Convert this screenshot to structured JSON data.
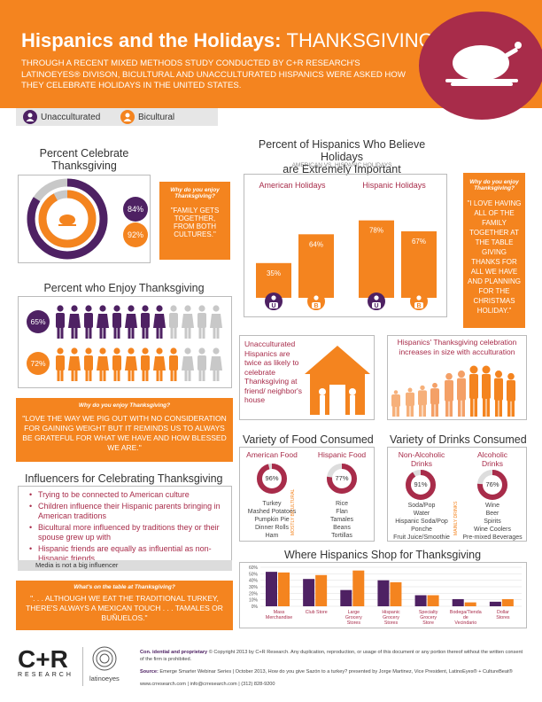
{
  "header": {
    "title_bold": "Hispanics and the Holidays:",
    "title_thin": "THANKSGIVING",
    "description": "Through a recent mixed methods study conducted by C+R Research's LatinoEyes® divison, bicultural and unacculturated Hispanics were asked how they celebrate holidays in the United States."
  },
  "legend": {
    "unacculturated": "Unacculturated",
    "bicultural": "Bicultural"
  },
  "colors": {
    "purple": "#4e2163",
    "orange": "#f4841f",
    "maroon": "#a82c4a",
    "gray": "#c8c8c8"
  },
  "celebrate": {
    "title_line1": "Percent Celebrate",
    "title_line2": "Thanksgiving",
    "unacculturated": "84%",
    "bicultural": "92%",
    "quote_q": "Why do you enjoy Thanksgiving?",
    "quote": "\"Family gets together, from both cultures.\""
  },
  "enjoy": {
    "title": "Percent who Enjoy Thanksgiving",
    "unacculturated": "65%",
    "bicultural": "72%"
  },
  "quote_wide": {
    "q": "Why do you enjoy Thanksgiving?",
    "text": "\"Love the way we pig out with no consideration for gaining weight but it reminds us to always be grateful for what we have and how blessed we are.\""
  },
  "important": {
    "title_line1": "Percent of Hispanics Who Believe Holidays",
    "title_line2": "are Extremely Important",
    "subtitle": "American vs. Hispanic Holidays",
    "american_label": "American Holidays",
    "hispanic_label": "Hispanic Holidays",
    "u_mark": "U",
    "b_mark": "B"
  },
  "chart_data": [
    {
      "type": "bar",
      "title": "Percent of Hispanics Who Believe Holidays are Extremely Important",
      "categories": [
        "American Holidays",
        "Hispanic Holidays"
      ],
      "series": [
        {
          "name": "Unacculturated",
          "values": [
            35,
            78
          ]
        },
        {
          "name": "Bicultural",
          "values": [
            64,
            67
          ]
        }
      ],
      "labels": [
        "35%",
        "64%",
        "78%",
        "67%"
      ],
      "ylim": [
        0,
        100
      ]
    },
    {
      "type": "bar",
      "title": "Where Hispanics Shop for Thanksgiving",
      "categories": [
        "Mass Merchandise",
        "Club Store",
        "Large Grocery Stores",
        "Hispanic Grocery Stores",
        "Specialty Grocery Store",
        "Bodega/Tienda de Vecindario",
        "Dollar Stores"
      ],
      "series": [
        {
          "name": "Unacculturated",
          "values": [
            53,
            42,
            25,
            40,
            17,
            11,
            7
          ]
        },
        {
          "name": "Bicultural",
          "values": [
            52,
            48,
            55,
            37,
            17,
            6,
            11
          ]
        }
      ],
      "yticks": [
        "0%",
        "10%",
        "20%",
        "30%",
        "40%",
        "50%",
        "60%"
      ],
      "ylim": [
        0,
        60
      ]
    }
  ],
  "quote_right": {
    "q": "Why do you enjoy Thanksgiving?",
    "text": "\"I love having all of the family together at the table giving thanks for all we have and planning for the Christmas holiday.\""
  },
  "house": {
    "text": "Unacculturated Hispanics are twice as likely to celebrate Thanksgiving at friend/ neighbor's house"
  },
  "family": {
    "text": "Hispanics' Thanksgiving celebration increases in size with acculturation"
  },
  "food": {
    "title": "Variety of Food Consumed",
    "american": "American Food",
    "hispanic": "Hispanic Food",
    "american_pct": "96%",
    "hispanic_pct": "77%",
    "american_items": [
      "Turkey",
      "Mashed Potatoes",
      "Pumpkin Pie",
      "Dinner Rolls",
      "Ham"
    ],
    "hispanic_items": [
      "Rice",
      "Flan",
      "Tamales",
      "Beans",
      "Tortillas"
    ],
    "side": "Mostly Bicultural"
  },
  "drinks": {
    "title": "Variety of Drinks Consumed",
    "nonalc_l1": "Non-Alcoholic",
    "nonalc_l2": "Drinks",
    "alc_l1": "Alcoholic",
    "alc_l2": "Drinks",
    "nonalc_pct": "91%",
    "alc_pct": "76%",
    "nonalc_items": [
      "Soda/Pop",
      "Water",
      "Hispanic Soda/Pop",
      "Ponche",
      "Fruit Juice/Smoothie"
    ],
    "alc_items": [
      "Wine",
      "Beer",
      "Spirits",
      "Wine Coolers",
      "Pre-mixed Beverages"
    ],
    "side": "Mainly Drinks"
  },
  "influencers": {
    "title": "Influencers for Celebrating Thanksgiving",
    "items": [
      "Trying to be connected to American culture",
      "Children influence their Hispanic parents bringing in American traditions",
      "Bicultural more influenced by traditions they or their spouse grew up with",
      "Hispanic friends are equally as influential as non-Hispanic friends"
    ],
    "footer": "Media is not a big influencer"
  },
  "table_quote": {
    "q": "What's on the table at Thanksgiving?",
    "text": "\". . . although we eat the traditional turkey, there's always a Mexican touch . . . tamales or buñuelos.\""
  },
  "shop": {
    "title": "Where Hispanics Shop for Thanksgiving"
  },
  "footer": {
    "logo": "C+R",
    "logo_sub": "RESEARCH",
    "latinoeyes": "latinoeyes",
    "conf_bold": "Con. idential and proprietary",
    "conf_text": "© Copyright 2013 by C+R Research. Any duplication, reproduction, or usage of this document or any portion thereof without the written consent of the firm is prohibited.",
    "source_bold": "Source:",
    "source_text": "Emerge Smarter Webinar Series | October 2013, How do you give Sazón to a turkey? presented by Jorge Martinez, Vice President, LatinoEyes® + CultureBeat®",
    "contact": "www.crresearch.com | info@crresearch.com | (312) 828-9200"
  }
}
